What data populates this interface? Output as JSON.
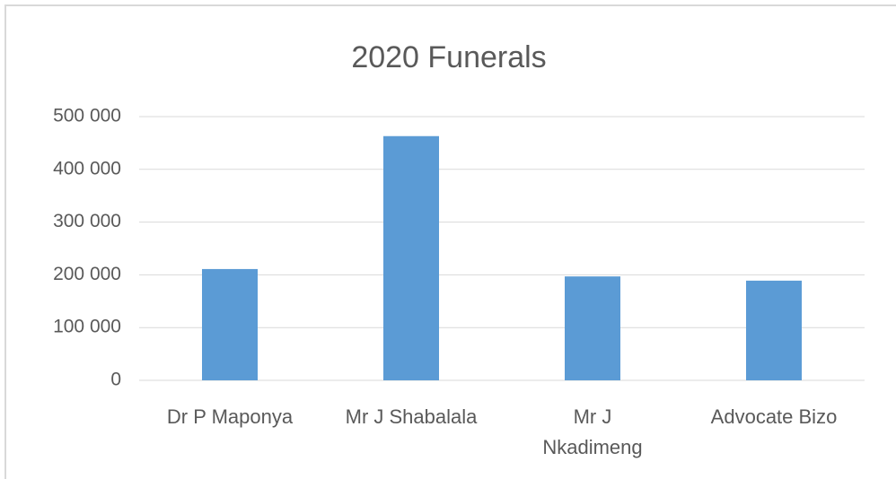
{
  "chart_data": {
    "type": "bar",
    "title": "2020 Funerals",
    "categories": [
      "Dr P Maponya",
      "Mr J Shabalala",
      "Mr J Nkadimeng",
      "Advocate Bizo"
    ],
    "values": [
      211000,
      463000,
      197000,
      189000
    ],
    "color": "#5b9bd5",
    "ylim": [
      0,
      500000
    ],
    "yticks": [
      0,
      {
        "value": 100000,
        "label": "100 000"
      },
      {
        "value": 200000,
        "label": "200 000"
      },
      {
        "value": 300000,
        "label": "300 000"
      },
      {
        "value": 400000,
        "label": "400 000"
      },
      {
        "value": 500000,
        "label": "500 000"
      }
    ],
    "grid": true
  }
}
